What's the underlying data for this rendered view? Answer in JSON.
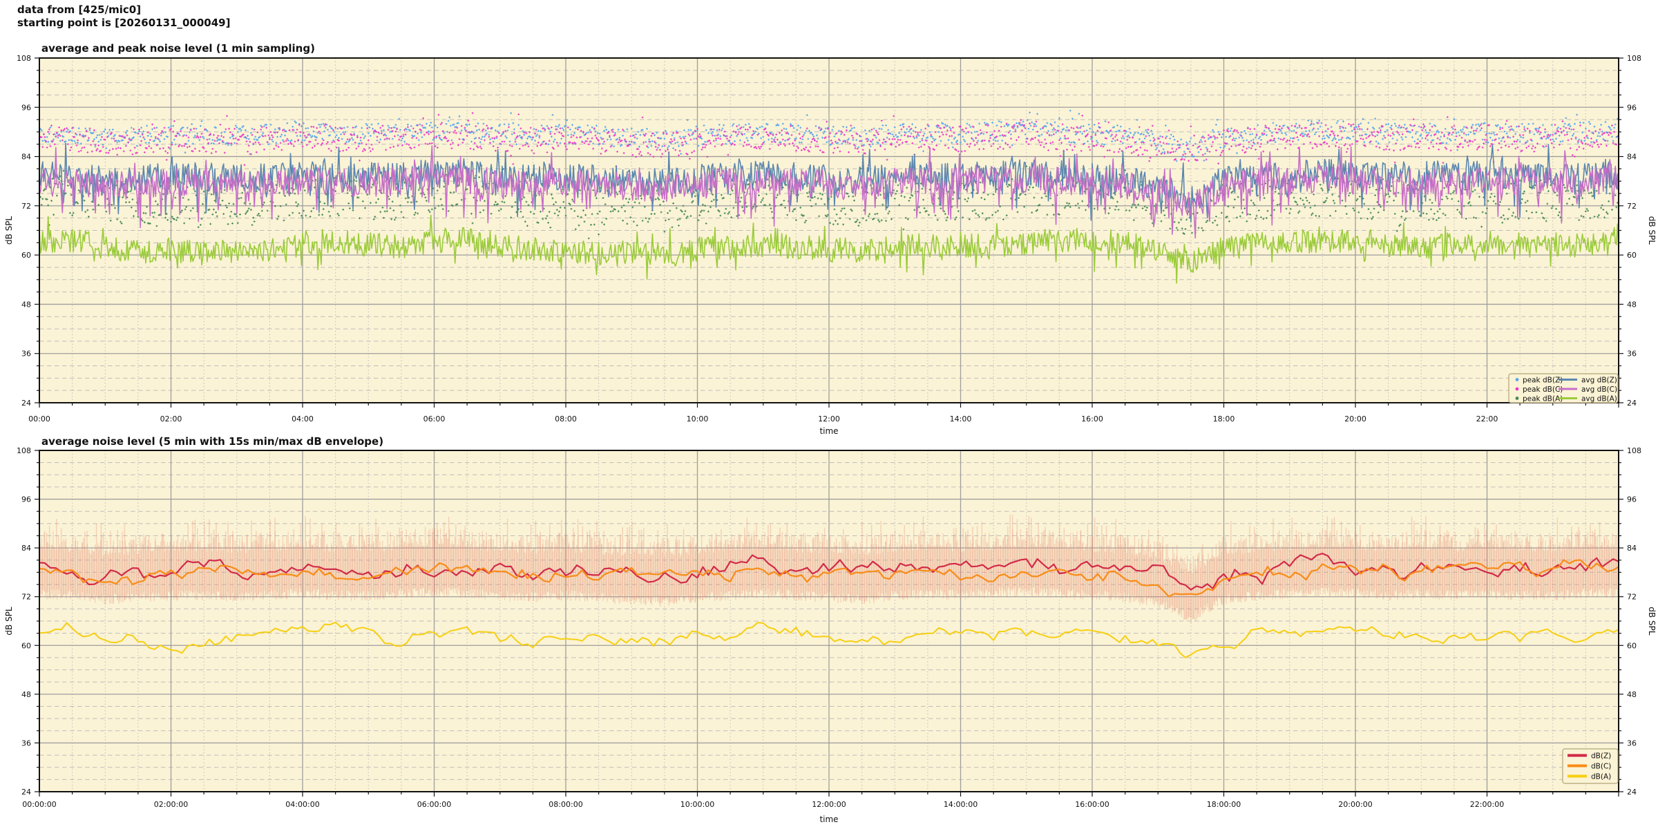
{
  "header": {
    "line1": "data from [425/mic0]",
    "line2": "starting point is [20260131_000049]"
  },
  "chart_data": [
    {
      "type": "line",
      "title": "average and peak noise level (1 min sampling)",
      "xlabel": "time",
      "ylabel_left": "dB SPL",
      "ylabel_right": "dB SPL",
      "xlim_hours": [
        0,
        24
      ],
      "ylim": [
        24,
        108
      ],
      "y_major_step": 12,
      "y_minor_step": 3,
      "x_major_step_h": 2,
      "x_minor_step_h": 0.5,
      "grid": true,
      "y_ticks": [
        24,
        36,
        48,
        60,
        72,
        84,
        96,
        108
      ],
      "x_tick_labels": [
        "00:00",
        "02:00",
        "04:00",
        "06:00",
        "08:00",
        "10:00",
        "12:00",
        "14:00",
        "16:00",
        "18:00",
        "20:00",
        "22:00"
      ],
      "plot_bg": "#fbf3d5",
      "anchors": {
        "avg_z": [
          79.5,
          79,
          78,
          78.5,
          79,
          79,
          78.5,
          79,
          79.5,
          79,
          79,
          79.5,
          80,
          79.5,
          79,
          78.5,
          79,
          78.5,
          78,
          77.5,
          78.5,
          79,
          79.5,
          79,
          78.5,
          78,
          79,
          79.5,
          79,
          79.5,
          80,
          79.5,
          79,
          78.5,
          77,
          73.5,
          78,
          79,
          79.5,
          80,
          79.5,
          79,
          79.5,
          79,
          79.5,
          79,
          79,
          79.5,
          79.5
        ],
        "avg_c": [
          78.2,
          77.7,
          76.7,
          77.2,
          77.7,
          77.7,
          77.2,
          77.7,
          78.2,
          77.7,
          77.7,
          78.2,
          78.7,
          78.2,
          77.7,
          77.2,
          77.7,
          77.2,
          76.7,
          76.2,
          77.2,
          77.7,
          78.2,
          77.7,
          77.2,
          76.7,
          77.7,
          78.2,
          77.7,
          78.2,
          78.7,
          78.2,
          77.7,
          77.2,
          75.7,
          71.8,
          76.7,
          77.7,
          78.2,
          78.7,
          78.2,
          77.7,
          78.2,
          77.7,
          78.2,
          77.7,
          77.7,
          78.2,
          78.2
        ],
        "avg_a": [
          63,
          63.5,
          62,
          61,
          61,
          60.5,
          61,
          61.5,
          63,
          63.5,
          62.5,
          62,
          63.5,
          64,
          62.5,
          61.5,
          61,
          60.5,
          61,
          60.5,
          61.5,
          62,
          62.5,
          62,
          61.5,
          61,
          62,
          62.5,
          62,
          62.5,
          63,
          63.5,
          63.5,
          63,
          61,
          58.5,
          61.5,
          62.5,
          63,
          63.5,
          63,
          62.5,
          62,
          62.5,
          63,
          62.5,
          62,
          62.5,
          63
        ],
        "peak_z": [
          90,
          89.5,
          88.5,
          89,
          89.5,
          89.5,
          89,
          89.5,
          90,
          89.5,
          89.5,
          90,
          90.5,
          90,
          89.5,
          89,
          89.5,
          89,
          88.5,
          88,
          89,
          89.5,
          90,
          89.5,
          89,
          88.5,
          89.5,
          90,
          89.5,
          90,
          90.5,
          90,
          89.5,
          89,
          87.5,
          86,
          88.5,
          89.5,
          90,
          90.5,
          90,
          89.5,
          90,
          89.5,
          90,
          89.5,
          89.5,
          90,
          90
        ],
        "peak_c": [
          88.8,
          88.3,
          87.3,
          87.8,
          88.3,
          88.3,
          87.8,
          88.3,
          88.8,
          88.3,
          88.3,
          88.8,
          89.3,
          88.8,
          88.3,
          87.8,
          88.3,
          87.8,
          87.3,
          86.8,
          87.8,
          88.3,
          88.8,
          88.3,
          87.8,
          87.3,
          88.3,
          88.8,
          88.3,
          88.8,
          89.3,
          88.8,
          88.3,
          87.8,
          86.3,
          85,
          87.3,
          88.3,
          88.8,
          89.3,
          88.8,
          88.3,
          88.8,
          88.3,
          88.8,
          88.3,
          88.3,
          88.8,
          88.8
        ],
        "peak_a": [
          74,
          74.5,
          73,
          72,
          72,
          71.5,
          72,
          72.5,
          74,
          74.5,
          73.5,
          73,
          74.5,
          75,
          73.5,
          72.5,
          72,
          71.5,
          72,
          71.5,
          72.5,
          73,
          73.5,
          73,
          72.5,
          72,
          73,
          73.5,
          73,
          73.5,
          74,
          74.5,
          74.5,
          74,
          72,
          69.5,
          72.5,
          73.5,
          74,
          74.5,
          74,
          73.5,
          73,
          73.5,
          74,
          73.5,
          73,
          73.5,
          74
        ]
      },
      "series": [
        {
          "name": "peak dB(Z)",
          "style": "scatter",
          "color": "#58a7ec",
          "anchors_key": "peak_z",
          "samples_per_hour": 60,
          "jitter": 5.0,
          "up_prob": 0.05,
          "up_min": 1.0,
          "up_var": 2.5,
          "down_prob": 0.04,
          "down_min": 1.0,
          "down_var": 2.0,
          "seed": 101
        },
        {
          "name": "peak dB(C)",
          "style": "scatter",
          "color": "#ea3cc7",
          "anchors_key": "peak_c",
          "samples_per_hour": 60,
          "jitter": 6.2,
          "up_prob": 0.05,
          "up_min": 1.0,
          "up_var": 2.6,
          "down_prob": 0.06,
          "down_min": 1.0,
          "down_var": 2.6,
          "seed": 202
        },
        {
          "name": "peak dB(A)",
          "style": "scatter",
          "color": "#468a58",
          "anchors_key": "peak_a",
          "samples_per_hour": 60,
          "jitter": 10.0,
          "up_prob": 0.07,
          "up_min": 1.5,
          "up_var": 3.0,
          "down_prob": 0.05,
          "down_min": 1.0,
          "down_var": 2.5,
          "seed": 303
        },
        {
          "name": "avg dB(Z)",
          "style": "line",
          "width": 1.6,
          "color": "#5b86af",
          "anchors_key": "avg_z",
          "samples_per_hour": 60,
          "jitter": 7.0,
          "down_prob": 0.08,
          "down_min": 2.0,
          "down_var": 6.0,
          "up_prob": 0.05,
          "up_min": 1.5,
          "up_var": 4.0,
          "seed": 404
        },
        {
          "name": "avg dB(C)",
          "style": "line",
          "width": 1.6,
          "color": "#c76ec8",
          "anchors_key": "avg_c",
          "samples_per_hour": 60,
          "jitter": 7.0,
          "down_prob": 0.11,
          "down_min": 2.0,
          "down_var": 7.0,
          "up_prob": 0.05,
          "up_min": 1.5,
          "up_var": 4.0,
          "seed": 505
        },
        {
          "name": "avg dB(A)",
          "style": "line",
          "width": 1.6,
          "color": "#9bcb3b",
          "anchors_key": "avg_a",
          "samples_per_hour": 60,
          "jitter": 6.0,
          "down_prob": 0.05,
          "down_min": 1.5,
          "down_var": 3.5,
          "up_prob": 0.05,
          "up_min": 1.0,
          "up_var": 3.0,
          "seed": 606
        }
      ],
      "legend": {
        "rows": [
          {
            "dot_label": "peak dB(Z)",
            "dot_color": "#58a7ec",
            "line_label": "avg dB(Z)",
            "line_color": "#5b86af"
          },
          {
            "dot_label": "peak dB(C)",
            "dot_color": "#ea3cc7",
            "line_label": "avg dB(C)",
            "line_color": "#c76ec8"
          },
          {
            "dot_label": "peak dB(A)",
            "dot_color": "#468a58",
            "line_label": "avg dB(A)",
            "line_color": "#9bcb3b"
          }
        ]
      }
    },
    {
      "type": "line",
      "title": "average noise level (5 min with 15s min/max dB envelope)",
      "xlabel": "time",
      "ylabel_left": "dB SPL",
      "ylabel_right": "dB SPL",
      "xlim_hours": [
        0,
        24
      ],
      "ylim": [
        24,
        108
      ],
      "y_major_step": 12,
      "y_minor_step": 3,
      "x_major_step_h": 2,
      "x_minor_step_h": 0.5,
      "grid": true,
      "y_ticks": [
        24,
        36,
        48,
        60,
        72,
        84,
        96,
        108
      ],
      "x_tick_labels": [
        "00:00:00",
        "02:00:00",
        "04:00:00",
        "06:00:00",
        "08:00:00",
        "10:00:00",
        "12:00:00",
        "14:00:00",
        "16:00:00",
        "18:00:00",
        "20:00:00",
        "22:00:00"
      ],
      "plot_bg": "#fbf3d5",
      "anchors": {
        "dbz": [
          79.5,
          79,
          78,
          78.5,
          79,
          79,
          78.5,
          79,
          79.5,
          79,
          79,
          79.5,
          80,
          79.5,
          79,
          78.5,
          79,
          78.5,
          78,
          77.5,
          78.5,
          79,
          79.5,
          79,
          78.5,
          78,
          79,
          79.5,
          79,
          79.5,
          80,
          79.5,
          79,
          78.5,
          77,
          73.5,
          78,
          79,
          79.5,
          80,
          79.5,
          79,
          79.5,
          79,
          79.5,
          79,
          79,
          79.5,
          79.5
        ],
        "dba": [
          63,
          63.5,
          62,
          61,
          61,
          60.5,
          61,
          61.5,
          63,
          63.5,
          62.5,
          62,
          63.5,
          64,
          62.5,
          61.5,
          61,
          60.5,
          61,
          60.5,
          61.5,
          62,
          62.5,
          62,
          61.5,
          61,
          62,
          62.5,
          62,
          62.5,
          63,
          63.5,
          63.5,
          63,
          61,
          58.5,
          61.5,
          62.5,
          63,
          63.5,
          63,
          62.5,
          62,
          62.5,
          63,
          62.5,
          62,
          62.5,
          63
        ]
      },
      "envelope": {
        "applies_to": "dB(Z)",
        "anchors_key": "dbz",
        "color": "#e4876f",
        "min_offset": -8.0,
        "max_offset": 7.0,
        "seed": 77
      },
      "series": [
        {
          "name": "dB(Z)",
          "style": "line",
          "width": 2.2,
          "color": "#d22a48",
          "anchors_key": "dbz",
          "offset": 0,
          "samples_per_hour": 12,
          "jitter": 1.6,
          "walk_step": 3.0,
          "walk_damp": 0.84,
          "seed": 711
        },
        {
          "name": "dB(C)",
          "style": "line",
          "width": 2.2,
          "color": "#f88c17",
          "anchors_key": "dbz",
          "offset": -1.6,
          "samples_per_hour": 12,
          "jitter": 1.4,
          "walk_step": 3.0,
          "walk_damp": 0.84,
          "seed": 711,
          "follow_prev": true
        },
        {
          "name": "dB(A)",
          "style": "line",
          "width": 2.0,
          "color": "#f6cf12",
          "anchors_key": "dba",
          "offset": 0,
          "samples_per_hour": 12,
          "jitter": 1.4,
          "walk_step": 2.6,
          "walk_damp": 0.84,
          "seed": 933
        }
      ],
      "legend": {
        "rows": [
          {
            "line_label": "dB(Z)",
            "line_color": "#d22a48"
          },
          {
            "line_label": "dB(C)",
            "line_color": "#f88c17"
          },
          {
            "line_label": "dB(A)",
            "line_color": "#f6cf12"
          }
        ]
      }
    }
  ],
  "style_colors": {
    "plot_background": "#fbf3d5",
    "grid_major": "#9e9e9e",
    "grid_minor": "#bdbdbd",
    "frame": "#111111",
    "legend_border": "#b0a478",
    "envelope_pink": "#e4876f"
  }
}
